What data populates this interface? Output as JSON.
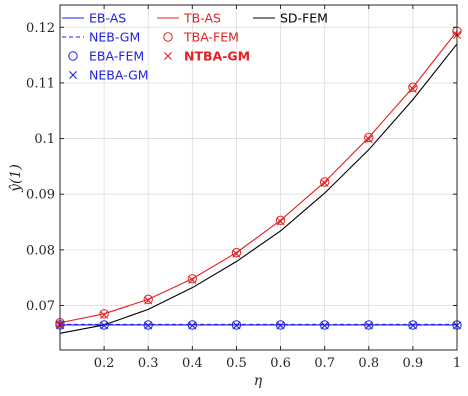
{
  "chart_data": {
    "type": "line",
    "xlabel": "η",
    "ylabel": "ŷ(1)",
    "xlim": [
      0.1,
      1.0
    ],
    "ylim": [
      0.062,
      0.124
    ],
    "xticks": [
      0.2,
      0.3,
      0.4,
      0.5,
      0.6,
      0.7,
      0.8,
      0.9,
      1
    ],
    "xtick_labels": [
      "0.2",
      "0.3",
      "0.4",
      "0.5",
      "0.6",
      "0.7",
      "0.8",
      "0.9",
      "1"
    ],
    "yticks": [
      0.07,
      0.08,
      0.09,
      0.1,
      0.11,
      0.12
    ],
    "ytick_labels": [
      "0.07",
      "0.08",
      "0.09",
      "0.1",
      "0.11",
      "0.12"
    ],
    "grid": true,
    "legend_placement": "top-left",
    "x": [
      0.1,
      0.2,
      0.3,
      0.4,
      0.5,
      0.6,
      0.7,
      0.8,
      0.9,
      1.0
    ],
    "series": [
      {
        "name": "EB-AS",
        "style": "line",
        "color": "#1f1fe6",
        "dash": "solid",
        "values": [
          0.0665,
          0.0665,
          0.0665,
          0.0665,
          0.0665,
          0.0665,
          0.0665,
          0.0665,
          0.0665,
          0.0665
        ]
      },
      {
        "name": "NEB-GM",
        "style": "line",
        "color": "#1f1fe6",
        "dash": "dashed",
        "values": [
          0.0666,
          0.0666,
          0.0666,
          0.0666,
          0.0666,
          0.0666,
          0.0666,
          0.0666,
          0.0666,
          0.0666
        ]
      },
      {
        "name": "EBA-FEM",
        "style": "marker",
        "marker": "circle",
        "color": "#1f1fe6",
        "values": [
          0.0665,
          0.0665,
          0.0665,
          0.0665,
          0.0665,
          0.0665,
          0.0665,
          0.0665,
          0.0665,
          0.0665
        ]
      },
      {
        "name": "NEBA-GM",
        "style": "marker",
        "marker": "x",
        "color": "#1f1fe6",
        "values": [
          0.0664,
          0.0664,
          0.0664,
          0.0664,
          0.0664,
          0.0664,
          0.0664,
          0.0664,
          0.0664,
          0.0664
        ]
      },
      {
        "name": "TB-AS",
        "style": "line",
        "color": "#e61f1f",
        "dash": "solid",
        "values": [
          0.0669,
          0.0685,
          0.0711,
          0.0748,
          0.0795,
          0.0853,
          0.0922,
          0.1002,
          0.1092,
          0.1193
        ]
      },
      {
        "name": "TBA-FEM",
        "style": "marker",
        "marker": "circle",
        "color": "#e61f1f",
        "values": [
          0.0669,
          0.0685,
          0.0711,
          0.0748,
          0.0795,
          0.0853,
          0.0922,
          0.1002,
          0.1092,
          0.1193
        ]
      },
      {
        "name": "NTBA-GM",
        "style": "marker",
        "marker": "x",
        "color": "#e61f1f",
        "values": [
          0.0667,
          0.0683,
          0.0709,
          0.0746,
          0.0793,
          0.0851,
          0.092,
          0.0999,
          0.1089,
          0.1186
        ]
      },
      {
        "name": "SD-FEM",
        "style": "line",
        "color": "#000000",
        "dash": "solid",
        "values": [
          0.065,
          0.0665,
          0.0693,
          0.0732,
          0.0779,
          0.0834,
          0.0902,
          0.098,
          0.107,
          0.117
        ]
      }
    ]
  },
  "legend": {
    "columns": [
      [
        "EB-AS",
        "NEB-GM",
        "EBA-FEM",
        "NEBA-GM"
      ],
      [
        "TB-AS",
        "TBA-FEM",
        "NTBA-GM"
      ],
      [
        "SD-FEM"
      ]
    ],
    "bold": [
      "NTBA-GM"
    ]
  }
}
